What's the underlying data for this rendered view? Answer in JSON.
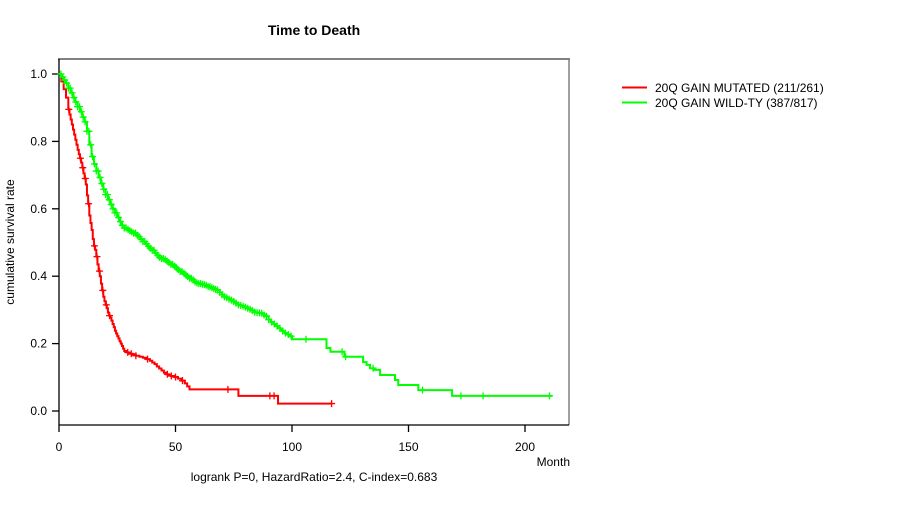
{
  "title": "Time to Death",
  "footer": "logrank P=0, HazardRatio=2.4, C-index=0.683",
  "axes": {
    "x_label": "Month",
    "y_label": "cumulative survival rate",
    "x_ticks": [
      "0",
      "50",
      "100",
      "150",
      "200"
    ],
    "y_ticks": [
      "0.0",
      "0.2",
      "0.4",
      "0.6",
      "0.8",
      "1.0"
    ]
  },
  "legend": {
    "items": [
      {
        "label": "20Q GAIN MUTATED (211/261)",
        "color": "#ff0000"
      },
      {
        "label": "20Q GAIN WILD-TY (387/817)",
        "color": "#00ff00"
      }
    ]
  },
  "chart_data": {
    "type": "line",
    "subtype": "kaplan-meier-step",
    "title": "Time to Death",
    "xlabel": "Month",
    "ylabel": "cumulative survival rate",
    "annotation": "logrank P=0, HazardRatio=2.4, C-index=0.683",
    "xlim": [
      0,
      219
    ],
    "ylim": [
      0,
      1.0
    ],
    "x_tick_values": [
      0,
      50,
      100,
      150,
      200
    ],
    "y_tick_values": [
      0,
      0.2,
      0.4,
      0.6,
      0.8,
      1.0
    ],
    "grid": false,
    "legend_position": "outside-right",
    "series": [
      {
        "name": "20Q GAIN MUTATED (211/261)",
        "color": "#ff0000",
        "end_month": 117,
        "steps": [
          [
            0,
            1
          ],
          [
            1,
            0.978
          ],
          [
            2,
            0.955
          ],
          [
            3,
            0.93
          ],
          [
            4,
            0.895
          ],
          [
            4.5,
            0.88
          ],
          [
            5,
            0.865
          ],
          [
            5.5,
            0.85
          ],
          [
            6,
            0.835
          ],
          [
            6.5,
            0.82
          ],
          [
            7,
            0.805
          ],
          [
            7.5,
            0.79
          ],
          [
            8,
            0.775
          ],
          [
            8.5,
            0.762
          ],
          [
            9,
            0.75
          ],
          [
            9.5,
            0.737
          ],
          [
            10,
            0.722
          ],
          [
            10.5,
            0.705
          ],
          [
            11,
            0.69
          ],
          [
            11.5,
            0.672
          ],
          [
            12,
            0.64
          ],
          [
            12.5,
            0.615
          ],
          [
            13,
            0.58
          ],
          [
            13.5,
            0.558
          ],
          [
            14,
            0.537
          ],
          [
            14.5,
            0.51
          ],
          [
            15,
            0.49
          ],
          [
            15.5,
            0.478
          ],
          [
            16,
            0.458
          ],
          [
            16.5,
            0.435
          ],
          [
            17,
            0.415
          ],
          [
            17.5,
            0.4
          ],
          [
            18,
            0.378
          ],
          [
            18.5,
            0.358
          ],
          [
            19,
            0.339
          ],
          [
            19.5,
            0.326
          ],
          [
            20,
            0.315
          ],
          [
            20.5,
            0.305
          ],
          [
            21,
            0.292
          ],
          [
            21.5,
            0.283
          ],
          [
            22,
            0.277
          ],
          [
            22.5,
            0.268
          ],
          [
            23,
            0.258
          ],
          [
            23.5,
            0.249
          ],
          [
            24,
            0.238
          ],
          [
            24.5,
            0.23
          ],
          [
            25,
            0.222
          ],
          [
            25.5,
            0.215
          ],
          [
            26,
            0.207
          ],
          [
            26.5,
            0.2
          ],
          [
            27,
            0.193
          ],
          [
            27.5,
            0.185
          ],
          [
            28,
            0.178
          ],
          [
            29,
            0.174
          ],
          [
            30,
            0.17
          ],
          [
            31.5,
            0.167
          ],
          [
            33,
            0.164
          ],
          [
            34.5,
            0.161
          ],
          [
            36,
            0.158
          ],
          [
            37.5,
            0.154
          ],
          [
            39,
            0.149
          ],
          [
            40,
            0.144
          ],
          [
            41,
            0.139
          ],
          [
            42,
            0.132
          ],
          [
            43,
            0.126
          ],
          [
            44,
            0.12
          ],
          [
            45,
            0.114
          ],
          [
            46,
            0.109
          ],
          [
            47,
            0.106
          ],
          [
            48,
            0.104
          ],
          [
            49.5,
            0.101
          ],
          [
            51,
            0.096
          ],
          [
            52.5,
            0.09
          ],
          [
            54,
            0.082
          ],
          [
            55,
            0.073
          ],
          [
            56,
            0.064
          ],
          [
            77,
            0.045
          ],
          [
            94,
            0.022
          ]
        ],
        "censor_months": [
          4.2,
          9.2,
          10.2,
          11.3,
          12.7,
          15.2,
          16.3,
          17.4,
          18.8,
          20.3,
          21.7,
          29.5,
          31,
          33,
          38,
          46.5,
          48.2,
          50,
          53,
          72.5,
          90.5,
          92.3,
          117
        ]
      },
      {
        "name": "20Q GAIN WILD-TY (387/817)",
        "color": "#00ff00",
        "end_month": 211.5,
        "steps": [
          [
            0,
            1
          ],
          [
            1,
            0.991
          ],
          [
            2,
            0.982
          ],
          [
            3,
            0.973
          ],
          [
            4,
            0.958
          ],
          [
            5,
            0.944
          ],
          [
            6,
            0.93
          ],
          [
            7,
            0.917
          ],
          [
            8,
            0.903
          ],
          [
            9,
            0.888
          ],
          [
            10,
            0.872
          ],
          [
            11,
            0.858
          ],
          [
            12,
            0.83
          ],
          [
            13,
            0.79
          ],
          [
            14,
            0.755
          ],
          [
            15,
            0.733
          ],
          [
            16,
            0.712
          ],
          [
            17,
            0.693
          ],
          [
            18,
            0.675
          ],
          [
            19,
            0.658
          ],
          [
            20,
            0.642
          ],
          [
            21,
            0.627
          ],
          [
            22,
            0.613
          ],
          [
            23,
            0.6
          ],
          [
            24,
            0.588
          ],
          [
            25,
            0.574
          ],
          [
            26,
            0.562
          ],
          [
            27,
            0.551
          ],
          [
            28,
            0.543
          ],
          [
            29,
            0.539
          ],
          [
            30,
            0.535
          ],
          [
            31,
            0.532
          ],
          [
            32,
            0.528
          ],
          [
            33,
            0.522
          ],
          [
            34,
            0.517
          ],
          [
            35,
            0.51
          ],
          [
            36,
            0.503
          ],
          [
            37,
            0.496
          ],
          [
            38,
            0.489
          ],
          [
            39,
            0.483
          ],
          [
            40,
            0.477
          ],
          [
            41,
            0.469
          ],
          [
            42,
            0.462
          ],
          [
            43,
            0.456
          ],
          [
            44,
            0.452
          ],
          [
            45,
            0.449
          ],
          [
            46,
            0.445
          ],
          [
            47,
            0.44
          ],
          [
            48,
            0.435
          ],
          [
            49,
            0.43
          ],
          [
            50,
            0.425
          ],
          [
            51,
            0.419
          ],
          [
            52,
            0.414
          ],
          [
            53,
            0.409
          ],
          [
            54,
            0.404
          ],
          [
            55,
            0.399
          ],
          [
            56,
            0.394
          ],
          [
            57,
            0.389
          ],
          [
            58,
            0.383
          ],
          [
            59,
            0.38
          ],
          [
            60,
            0.378
          ],
          [
            61,
            0.376
          ],
          [
            62,
            0.375
          ],
          [
            63,
            0.373
          ],
          [
            64,
            0.369
          ],
          [
            65,
            0.366
          ],
          [
            66,
            0.363
          ],
          [
            67,
            0.361
          ],
          [
            68,
            0.359
          ],
          [
            69,
            0.352
          ],
          [
            70,
            0.345
          ],
          [
            71,
            0.339
          ],
          [
            72,
            0.336
          ],
          [
            73,
            0.332
          ],
          [
            74,
            0.329
          ],
          [
            75,
            0.325
          ],
          [
            76,
            0.32
          ],
          [
            77,
            0.315
          ],
          [
            78,
            0.313
          ],
          [
            79,
            0.311
          ],
          [
            80,
            0.308
          ],
          [
            81,
            0.305
          ],
          [
            82,
            0.302
          ],
          [
            83,
            0.298
          ],
          [
            84,
            0.293
          ],
          [
            85,
            0.292
          ],
          [
            86,
            0.291
          ],
          [
            87,
            0.29
          ],
          [
            88,
            0.285
          ],
          [
            89,
            0.281
          ],
          [
            90,
            0.271
          ],
          [
            91,
            0.264
          ],
          [
            92,
            0.258
          ],
          [
            93,
            0.252
          ],
          [
            94,
            0.246
          ],
          [
            95,
            0.241
          ],
          [
            96,
            0.237
          ],
          [
            97,
            0.231
          ],
          [
            98,
            0.227
          ],
          [
            99,
            0.222
          ],
          [
            100,
            0.213
          ],
          [
            114.8,
            0.187
          ],
          [
            116.5,
            0.176
          ],
          [
            122.5,
            0.161
          ],
          [
            130.5,
            0.145
          ],
          [
            132,
            0.137
          ],
          [
            133.5,
            0.127
          ],
          [
            135,
            0.122
          ],
          [
            137.8,
            0.107
          ],
          [
            144.2,
            0.092
          ],
          [
            145.6,
            0.077
          ],
          [
            154.2,
            0.062
          ],
          [
            168.7,
            0.045
          ]
        ],
        "censor_months": [
          0.8,
          1.6,
          2.4,
          3.2,
          4,
          4.8,
          5.6,
          6.4,
          7.2,
          8,
          8.8,
          9.6,
          10.4,
          11.2,
          12,
          12.8,
          13.6,
          14.4,
          15.2,
          16,
          16.8,
          17.6,
          18.4,
          19.2,
          20,
          20.8,
          21.6,
          22.4,
          23.2,
          24,
          24.8,
          25.6,
          26.4,
          27.2,
          28,
          28.8,
          29.6,
          30.4,
          31.2,
          32,
          32.8,
          33.6,
          34.4,
          35.2,
          36,
          36.8,
          37.6,
          38.4,
          39.2,
          40,
          40.8,
          41.6,
          42.4,
          43.2,
          44,
          44.8,
          45.6,
          46.4,
          47.2,
          48,
          48.8,
          49.6,
          50.4,
          51.2,
          52,
          52.8,
          53.6,
          54.4,
          55.2,
          56,
          56.8,
          57.6,
          58.4,
          59.2,
          60,
          60.8,
          61.6,
          62.4,
          63.2,
          64,
          64.8,
          65.6,
          66.4,
          67.2,
          68,
          69,
          70,
          71,
          72,
          73,
          74,
          75,
          76,
          77,
          78,
          79,
          80,
          81,
          82,
          83,
          84,
          85,
          86,
          87,
          88,
          89,
          90,
          91.2,
          92.4,
          93.6,
          94.8,
          96,
          97.2,
          98.4,
          99.6,
          106,
          121.5,
          123,
          134.8,
          156,
          172.5,
          182,
          210.5
        ]
      }
    ]
  }
}
